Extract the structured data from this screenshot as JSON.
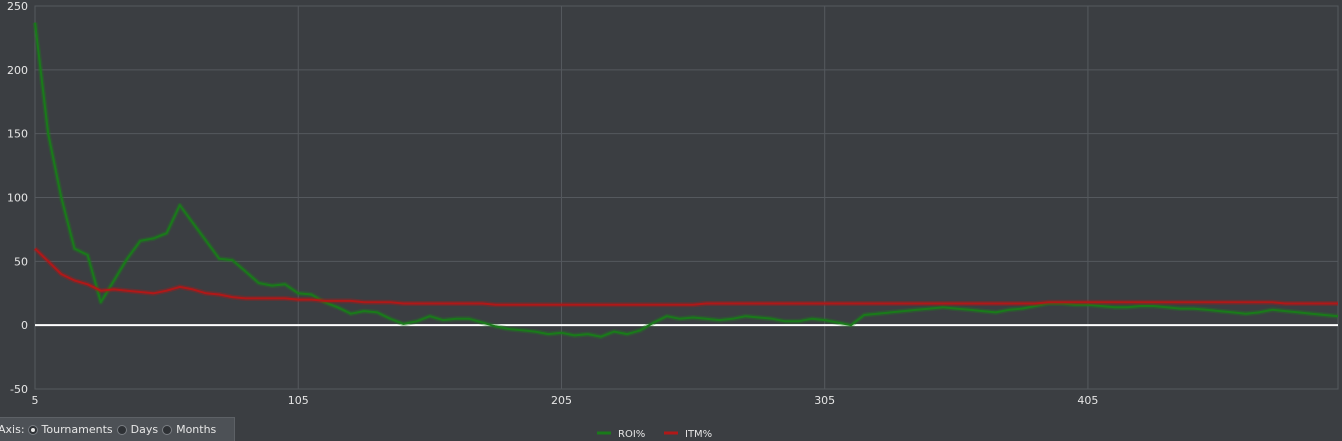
{
  "chart_data": {
    "type": "line",
    "title": "",
    "xlabel": "",
    "ylabel": "",
    "xlim": [
      5,
      500
    ],
    "ylim": [
      -50,
      250
    ],
    "x_ticks": [
      5,
      105,
      205,
      305,
      405
    ],
    "y_ticks": [
      250,
      200,
      150,
      100,
      50,
      0,
      -50
    ],
    "grid": true,
    "legend_position": "bottom-center",
    "series": [
      {
        "name": "ROI%",
        "color": "#1a7a1a",
        "x": [
          5,
          10,
          15,
          20,
          25,
          30,
          35,
          40,
          45,
          50,
          55,
          60,
          65,
          70,
          75,
          80,
          85,
          90,
          95,
          100,
          105,
          110,
          115,
          120,
          125,
          130,
          135,
          140,
          145,
          150,
          155,
          160,
          165,
          170,
          175,
          180,
          185,
          190,
          195,
          200,
          205,
          210,
          215,
          220,
          225,
          230,
          235,
          240,
          245,
          250,
          255,
          260,
          265,
          270,
          275,
          280,
          285,
          290,
          295,
          300,
          305,
          310,
          315,
          320,
          325,
          330,
          335,
          340,
          345,
          350,
          355,
          360,
          365,
          370,
          375,
          380,
          385,
          390,
          395,
          400,
          405,
          410,
          415,
          420,
          425,
          430,
          435,
          440,
          445,
          450,
          455,
          460,
          465,
          470,
          475,
          480,
          485,
          490,
          495,
          500
        ],
        "values": [
          237,
          150,
          100,
          60,
          55,
          18,
          35,
          52,
          66,
          68,
          72,
          94,
          80,
          66,
          52,
          51,
          42,
          33,
          31,
          32,
          25,
          24,
          18,
          14,
          9,
          11,
          10,
          5,
          1,
          3,
          7,
          4,
          5,
          5,
          2,
          -1,
          -3,
          -4,
          -5,
          -7,
          -6,
          -8,
          -7,
          -9,
          -5,
          -7,
          -4,
          2,
          7,
          5,
          6,
          5,
          4,
          5,
          7,
          6,
          5,
          3,
          3,
          5,
          4,
          2,
          0,
          8,
          9,
          10,
          11,
          12,
          13,
          14,
          13,
          12,
          11,
          10,
          12,
          13,
          15,
          17,
          17,
          16,
          16,
          15,
          14,
          14,
          15,
          15,
          14,
          13,
          13,
          12,
          11,
          10,
          9,
          10,
          12,
          11,
          10,
          9,
          8,
          7
        ]
      },
      {
        "name": "ITM%",
        "color": "#b01818",
        "x": [
          5,
          10,
          15,
          20,
          25,
          30,
          35,
          40,
          45,
          50,
          55,
          60,
          65,
          70,
          75,
          80,
          85,
          90,
          95,
          100,
          105,
          110,
          115,
          120,
          125,
          130,
          135,
          140,
          145,
          150,
          155,
          160,
          165,
          170,
          175,
          180,
          185,
          190,
          195,
          200,
          205,
          210,
          215,
          220,
          225,
          230,
          235,
          240,
          245,
          250,
          255,
          260,
          265,
          270,
          275,
          280,
          285,
          290,
          295,
          300,
          305,
          310,
          315,
          320,
          325,
          330,
          335,
          340,
          345,
          350,
          355,
          360,
          365,
          370,
          375,
          380,
          385,
          390,
          395,
          400,
          405,
          410,
          415,
          420,
          425,
          430,
          435,
          440,
          445,
          450,
          455,
          460,
          465,
          470,
          475,
          480,
          485,
          490,
          495,
          500
        ],
        "values": [
          60,
          50,
          40,
          35,
          32,
          27,
          28,
          27,
          26,
          25,
          27,
          30,
          28,
          25,
          24,
          22,
          21,
          21,
          21,
          21,
          20,
          20,
          19,
          19,
          19,
          18,
          18,
          18,
          17,
          17,
          17,
          17,
          17,
          17,
          17,
          16,
          16,
          16,
          16,
          16,
          16,
          16,
          16,
          16,
          16,
          16,
          16,
          16,
          16,
          16,
          16,
          17,
          17,
          17,
          17,
          17,
          17,
          17,
          17,
          17,
          17,
          17,
          17,
          17,
          17,
          17,
          17,
          17,
          17,
          17,
          17,
          17,
          17,
          17,
          17,
          17,
          17,
          18,
          18,
          18,
          18,
          18,
          18,
          18,
          18,
          18,
          18,
          18,
          18,
          18,
          18,
          18,
          18,
          18,
          18,
          17,
          17,
          17,
          17,
          17
        ]
      }
    ]
  },
  "axis_panel": {
    "title": "Axis:",
    "options": [
      {
        "label": "Tournaments",
        "checked": true
      },
      {
        "label": "Days",
        "checked": false
      },
      {
        "label": "Months",
        "checked": false
      }
    ]
  },
  "colors": {
    "background": "#3b3e42",
    "grid": "#55595e",
    "zero_line": "#ffffff"
  }
}
